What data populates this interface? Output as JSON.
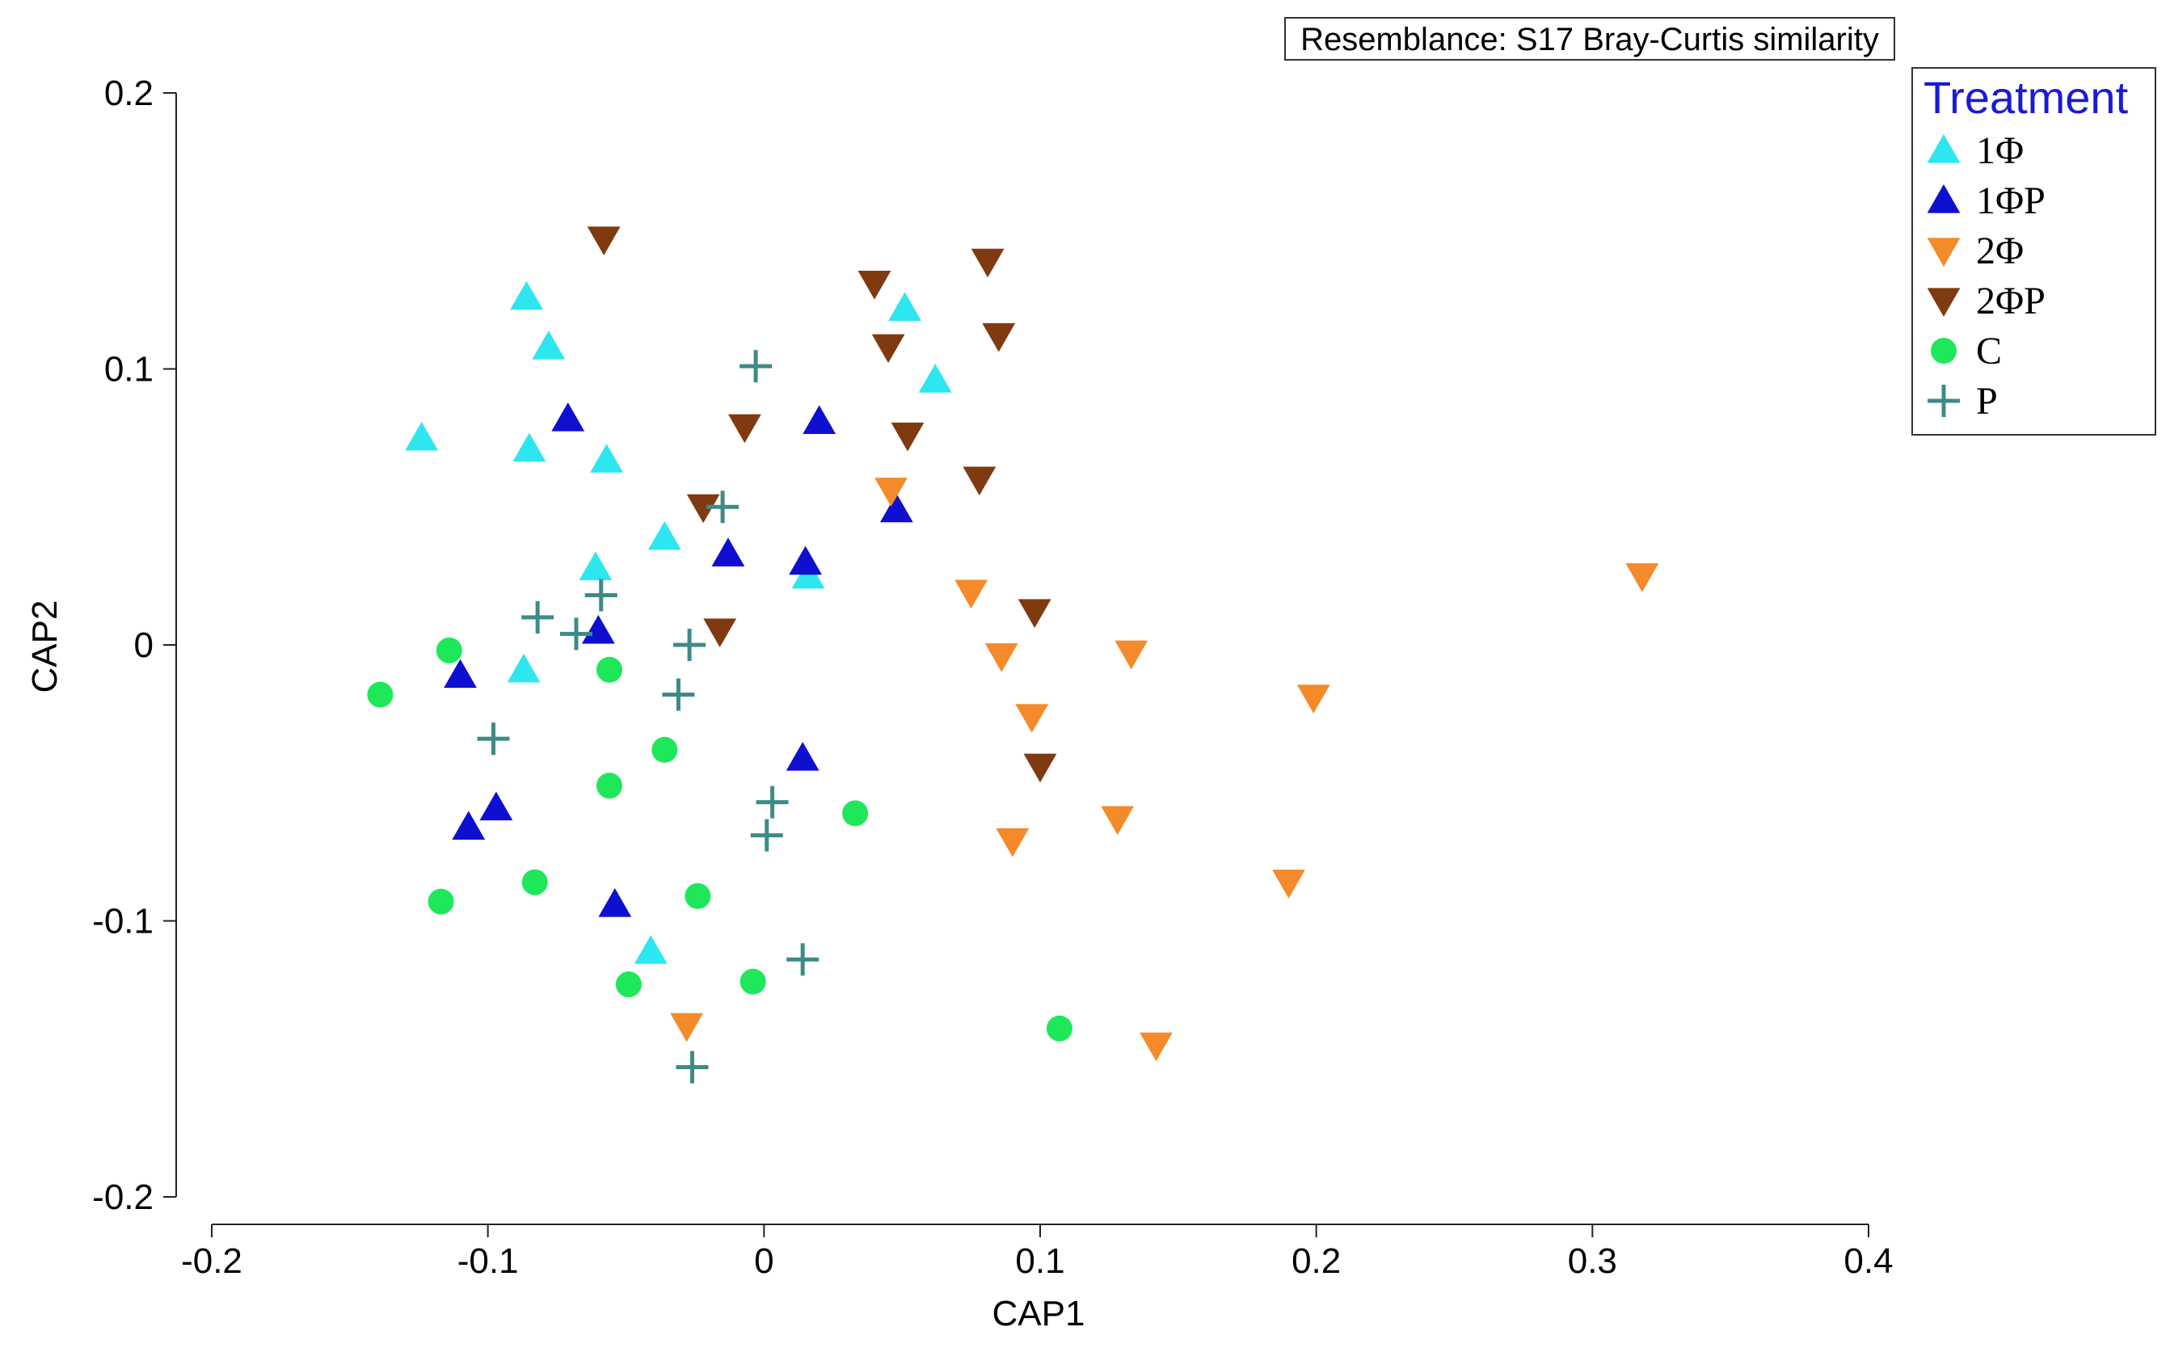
{
  "chart_data": {
    "type": "scatter",
    "title": "",
    "xlabel": "CAP1",
    "ylabel": "CAP2",
    "xlim": [
      -0.2,
      0.4
    ],
    "ylim": [
      -0.2,
      0.2
    ],
    "x_ticks": [
      "-0.2",
      "-0.1",
      "0",
      "0.1",
      "0.2",
      "0.3",
      "0.4"
    ],
    "y_ticks": [
      "0.2",
      "0.1",
      "0",
      "-0.1",
      "-0.2"
    ],
    "grid": false,
    "resemblance": "Resemblance: S17 Bray-Curtis similarity",
    "legend": {
      "title": "Treatment",
      "title_color": "#1a1ad6",
      "placement": "top-right"
    },
    "series": [
      {
        "name": "1Φ",
        "marker": "triangle-up",
        "color": "#2ee6ef",
        "points": [
          [
            -0.124,
            0.075
          ],
          [
            -0.086,
            0.126
          ],
          [
            -0.078,
            0.108
          ],
          [
            -0.085,
            0.071
          ],
          [
            -0.057,
            0.067
          ],
          [
            -0.036,
            0.039
          ],
          [
            -0.061,
            0.028
          ],
          [
            -0.087,
            -0.009
          ],
          [
            0.051,
            0.122
          ],
          [
            0.062,
            0.096
          ],
          [
            0.016,
            0.025
          ],
          [
            -0.041,
            -0.111
          ]
        ]
      },
      {
        "name": "1ΦP",
        "marker": "triangle-up",
        "color": "#0f0fd0",
        "points": [
          [
            -0.071,
            0.082
          ],
          [
            0.02,
            0.081
          ],
          [
            0.048,
            0.049
          ],
          [
            -0.013,
            0.033
          ],
          [
            0.015,
            0.03
          ],
          [
            -0.06,
            0.005
          ],
          [
            -0.11,
            -0.011
          ],
          [
            -0.097,
            -0.059
          ],
          [
            -0.107,
            -0.066
          ],
          [
            0.014,
            -0.041
          ],
          [
            -0.054,
            -0.094
          ]
        ]
      },
      {
        "name": "2Φ",
        "marker": "triangle-down",
        "color": "#f58a2a",
        "points": [
          [
            0.046,
            0.056
          ],
          [
            0.075,
            0.019
          ],
          [
            0.086,
            -0.004
          ],
          [
            0.133,
            -0.003
          ],
          [
            0.097,
            -0.026
          ],
          [
            0.199,
            -0.019
          ],
          [
            0.318,
            0.025
          ],
          [
            0.09,
            -0.071
          ],
          [
            0.128,
            -0.063
          ],
          [
            0.19,
            -0.086
          ],
          [
            -0.028,
            -0.138
          ],
          [
            0.142,
            -0.145
          ]
        ]
      },
      {
        "name": "2ΦP",
        "marker": "triangle-down",
        "color": "#7f3a10",
        "points": [
          [
            -0.058,
            0.147
          ],
          [
            0.04,
            0.131
          ],
          [
            0.081,
            0.139
          ],
          [
            0.045,
            0.108
          ],
          [
            0.085,
            0.112
          ],
          [
            -0.007,
            0.079
          ],
          [
            0.052,
            0.076
          ],
          [
            0.078,
            0.06
          ],
          [
            -0.022,
            0.05
          ],
          [
            0.098,
            0.012
          ],
          [
            -0.016,
            0.005
          ],
          [
            0.1,
            -0.044
          ]
        ]
      },
      {
        "name": "C",
        "marker": "circle",
        "color": "#1ee85a",
        "points": [
          [
            -0.114,
            -0.002
          ],
          [
            -0.139,
            -0.018
          ],
          [
            -0.056,
            -0.009
          ],
          [
            -0.036,
            -0.038
          ],
          [
            -0.056,
            -0.051
          ],
          [
            0.033,
            -0.061
          ],
          [
            -0.083,
            -0.086
          ],
          [
            -0.117,
            -0.093
          ],
          [
            -0.024,
            -0.091
          ],
          [
            -0.049,
            -0.123
          ],
          [
            -0.004,
            -0.122
          ],
          [
            0.107,
            -0.139
          ]
        ]
      },
      {
        "name": "P",
        "marker": "plus",
        "color": "#3f8a88",
        "points": [
          [
            -0.003,
            0.101
          ],
          [
            -0.015,
            0.05
          ],
          [
            -0.059,
            0.018
          ],
          [
            -0.082,
            0.01
          ],
          [
            -0.068,
            0.004
          ],
          [
            -0.027,
            0.0
          ],
          [
            -0.031,
            -0.018
          ],
          [
            -0.098,
            -0.034
          ],
          [
            0.003,
            -0.057
          ],
          [
            0.001,
            -0.069
          ],
          [
            0.014,
            -0.114
          ],
          [
            -0.026,
            -0.153
          ]
        ]
      }
    ]
  }
}
